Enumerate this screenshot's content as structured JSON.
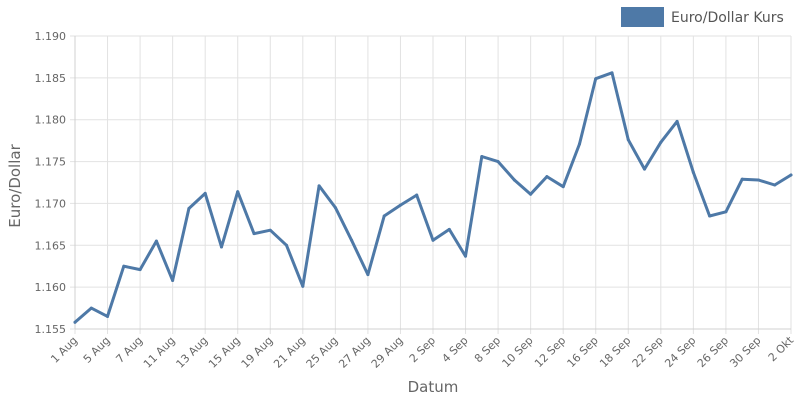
{
  "chart_data": {
    "type": "line",
    "xlabel": "Datum",
    "ylabel": "Euro/Dollar",
    "ylim": [
      1.155,
      1.19
    ],
    "y_ticks": [
      "1.155",
      "1.160",
      "1.165",
      "1.170",
      "1.175",
      "1.180",
      "1.185",
      "1.190"
    ],
    "grid": true,
    "legend_position": "top-right",
    "x_tick_labels": [
      "1 Aug",
      "5 Aug",
      "7 Aug",
      "11 Aug",
      "13 Aug",
      "15 Aug",
      "19 Aug",
      "21 Aug",
      "25 Aug",
      "27 Aug",
      "29 Aug",
      "2 Sep",
      "4 Sep",
      "8 Sep",
      "10 Sep",
      "12 Sep",
      "16 Sep",
      "18 Sep",
      "22 Sep",
      "24 Sep",
      "26 Sep",
      "30 Sep",
      "2 Okt"
    ],
    "series": [
      {
        "name": "Euro/Dollar Kurs",
        "color": "#4e79a7",
        "values": [
          1.1558,
          1.1575,
          1.1565,
          1.1625,
          1.1621,
          1.1655,
          1.1608,
          1.1694,
          1.1712,
          1.1648,
          1.1714,
          1.1664,
          1.1668,
          1.165,
          1.1601,
          1.1721,
          1.1695,
          1.1656,
          1.1615,
          1.1685,
          1.1698,
          1.171,
          1.1656,
          1.1669,
          1.1637,
          1.1756,
          1.175,
          1.1728,
          1.1711,
          1.1732,
          1.172,
          1.1771,
          1.1849,
          1.1856,
          1.1776,
          1.1741,
          1.1773,
          1.1798,
          1.1737,
          1.1685,
          1.169,
          1.1729,
          1.1728,
          1.1722,
          1.1734
        ]
      }
    ]
  }
}
